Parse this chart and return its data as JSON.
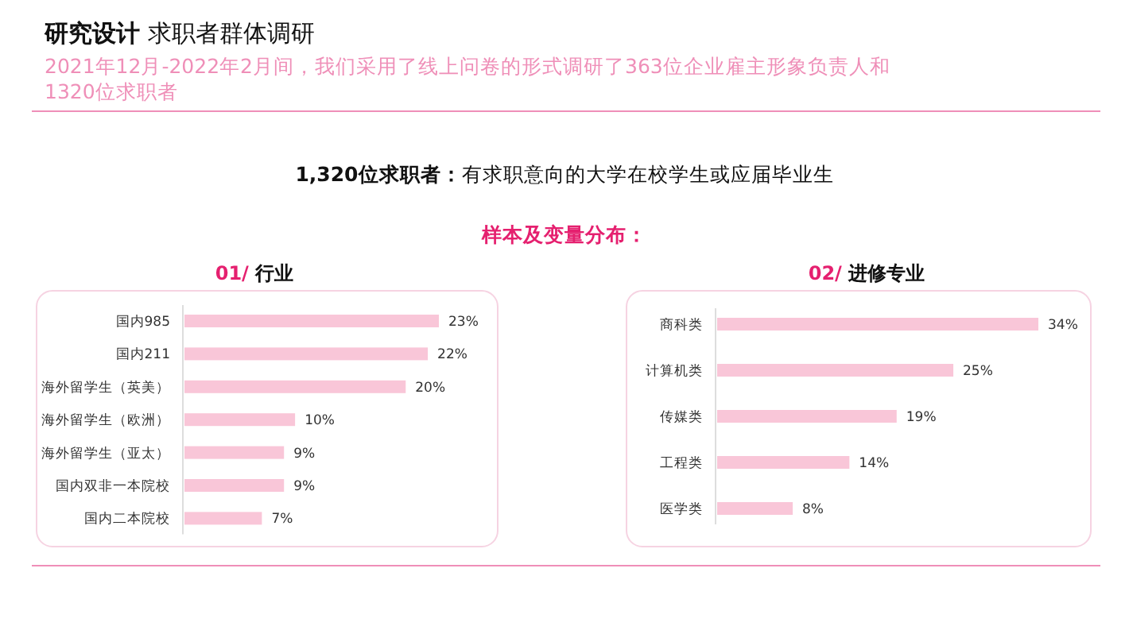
{
  "chart_data": [
    {
      "type": "bar",
      "orientation": "horizontal",
      "title": "01/ 行业",
      "categories": [
        "国内985",
        "国内211",
        "海外留学生（英美）",
        "海外留学生（欧洲）",
        "海外留学生（亚太）",
        "国内双非一本院校",
        "国内二本院校"
      ],
      "values": [
        23,
        22,
        20,
        10,
        9,
        9,
        7
      ],
      "value_labels": [
        "23%",
        "22%",
        "20%",
        "10%",
        "9%",
        "9%",
        "7%"
      ],
      "color": "#f9c6d8",
      "annotations": [
        "研究设计",
        "求职者群体调研",
        "2021年12月-2022年2月间，我们采用了线上问卷的形式调研了363位企业雇主形象负责人和",
        "1320位求职者",
        "1,320位求职者：",
        "有求职意向的大学在校学生或应届毕业生",
        "样本及变量分布："
      ]
    },
    {
      "type": "bar",
      "orientation": "horizontal",
      "title": "02/ 进修专业",
      "categories": [
        "商科类",
        "计算机类",
        "传媒类",
        "工程类",
        "医学类"
      ],
      "values": [
        34,
        25,
        19,
        14,
        8
      ],
      "value_labels": [
        "34%",
        "25%",
        "19%",
        "14%",
        "8%"
      ],
      "color": "#f9c6d8"
    }
  ]
}
